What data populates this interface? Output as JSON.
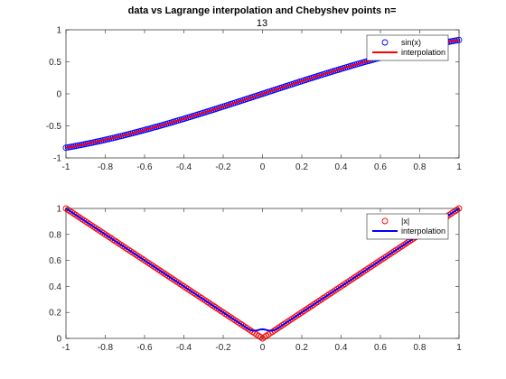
{
  "chart_data": [
    {
      "type": "scatter",
      "title_line1": "data vs Lagrange interpolation and Chebyshev points n=",
      "title_line2": "13",
      "xlim": [
        -1,
        1
      ],
      "ylim": [
        -1,
        1
      ],
      "xticks": [
        -1,
        -0.8,
        -0.6,
        -0.4,
        -0.2,
        0,
        0.2,
        0.4,
        0.6,
        0.8,
        1
      ],
      "yticks": [
        -1,
        -0.5,
        0,
        0.5,
        1
      ],
      "xtick_labels": [
        "-1",
        "-0.8",
        "-0.6",
        "-0.4",
        "-0.2",
        "0",
        "0.2",
        "0.4",
        "0.6",
        "0.8",
        "1"
      ],
      "ytick_labels": [
        "-1",
        "-0.5",
        "0",
        "0.5",
        "1"
      ],
      "grid": false,
      "legend_position": "top-right",
      "series": [
        {
          "name": "sin(x)",
          "style": "markers",
          "marker": "circle",
          "color": "#0000ff",
          "function": "sin",
          "x_start": -1,
          "x_end": 1,
          "samples": 201
        },
        {
          "name": "interpolation",
          "style": "line",
          "color": "#ff0000",
          "function": "sin",
          "x_start": -1,
          "x_end": 1,
          "samples": 201
        }
      ]
    },
    {
      "type": "scatter",
      "xlim": [
        -1,
        1
      ],
      "ylim": [
        0,
        1
      ],
      "xticks": [
        -1,
        -0.8,
        -0.6,
        -0.4,
        -0.2,
        0,
        0.2,
        0.4,
        0.6,
        0.8,
        1
      ],
      "yticks": [
        0,
        0.2,
        0.4,
        0.6,
        0.8,
        1
      ],
      "xtick_labels": [
        "-1",
        "-0.8",
        "-0.6",
        "-0.4",
        "-0.2",
        "0",
        "0.2",
        "0.4",
        "0.6",
        "0.8",
        "1"
      ],
      "ytick_labels": [
        "0",
        "0.2",
        "0.4",
        "0.6",
        "0.8",
        "1"
      ],
      "grid": false,
      "legend_position": "top-right",
      "series": [
        {
          "name": "|x|",
          "style": "markers",
          "marker": "circle",
          "color": "#ff0000",
          "function": "abs",
          "x_start": -1,
          "x_end": 1,
          "samples": 201
        },
        {
          "name": "interpolation",
          "style": "line",
          "color": "#0000ff",
          "function": "abs_interp",
          "x_start": -1,
          "x_end": 1,
          "samples": 201,
          "value_at_zero": 0.07
        }
      ]
    }
  ]
}
